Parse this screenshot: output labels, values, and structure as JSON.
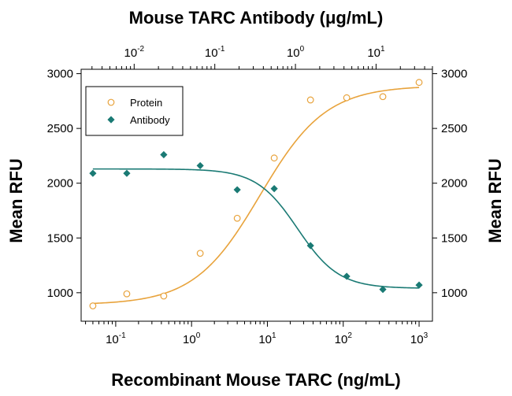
{
  "chart_data": {
    "type": "scatter",
    "title": "Mouse TARC Antibody (μg/mL)",
    "xlabel": "Recombinant Mouse TARC (ng/mL)",
    "ylabel_left": "Mean RFU",
    "ylabel_right": "Mean RFU",
    "x_scale": "log",
    "xlim": [
      0.035,
      1500
    ],
    "ylim": [
      740,
      3040
    ],
    "x_bottom_ticks": [
      {
        "base": "10",
        "exp": "-1",
        "value": 0.1
      },
      {
        "base": "10",
        "exp": "0",
        "value": 1
      },
      {
        "base": "10",
        "exp": "1",
        "value": 10
      },
      {
        "base": "10",
        "exp": "2",
        "value": 100
      },
      {
        "base": "10",
        "exp": "3",
        "value": 1000
      }
    ],
    "top_axis": {
      "scale": "log",
      "xlim": [
        0.0022,
        50
      ],
      "ticks": [
        {
          "base": "10",
          "exp": "-2",
          "value": 0.01
        },
        {
          "base": "10",
          "exp": "-1",
          "value": 0.1
        },
        {
          "base": "10",
          "exp": "0",
          "value": 1
        },
        {
          "base": "10",
          "exp": "1",
          "value": 10
        }
      ]
    },
    "y_ticks": [
      1000,
      1500,
      2000,
      2500,
      3000
    ],
    "legend": {
      "position": "top-left",
      "entries": [
        "Protein",
        "Antibody"
      ]
    },
    "grid": false,
    "series": [
      {
        "name": "Protein",
        "color": "#e8a33c",
        "marker": "open-circle",
        "x": [
          0.05,
          0.14,
          0.43,
          1.3,
          4.0,
          12.3,
          37,
          111,
          333,
          1000
        ],
        "y": [
          880,
          990,
          970,
          1360,
          1680,
          2230,
          2760,
          2780,
          2790,
          2920
        ],
        "fit": {
          "bottom": 890,
          "top": 2890,
          "ec50": 8.0,
          "hill": 1.0
        }
      },
      {
        "name": "Antibody",
        "color": "#1a7a74",
        "marker": "filled-diamond",
        "x": [
          0.05,
          0.14,
          0.43,
          1.3,
          4.0,
          12.3,
          37,
          111,
          333,
          1000
        ],
        "y": [
          2090,
          2090,
          2260,
          2160,
          1940,
          1950,
          1430,
          1150,
          1030,
          1070
        ],
        "fit": {
          "top": 2130,
          "bottom": 1040,
          "ec50": 25,
          "hill": 1.6
        }
      }
    ]
  }
}
